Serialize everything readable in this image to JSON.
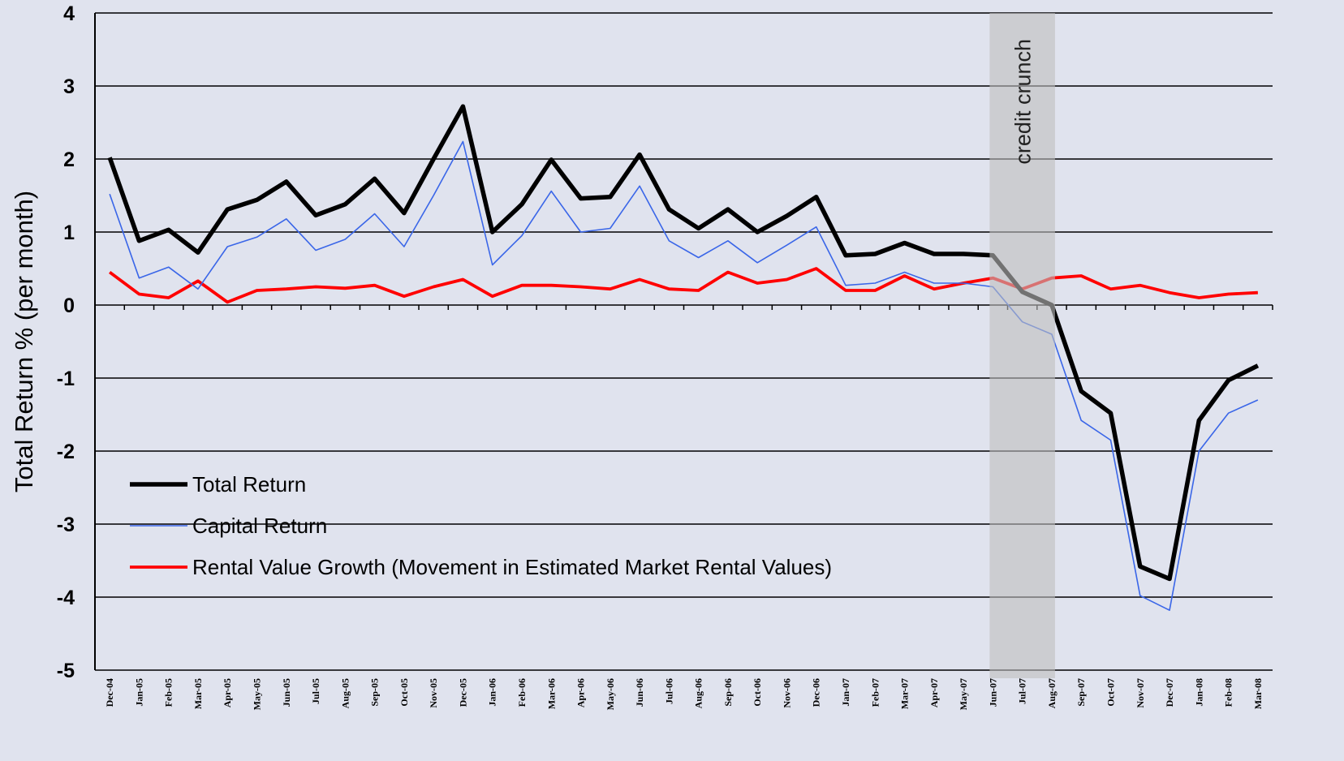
{
  "chart_data": {
    "type": "line",
    "y_label": "Total Return % (per month)",
    "categories": [
      "Dec-04",
      "Jan-05",
      "Feb-05",
      "Mar-05",
      "Apr-05",
      "May-05",
      "Jun-05",
      "Jul-05",
      "Aug-05",
      "Sep-05",
      "Oct-05",
      "Nov-05",
      "Dec-05",
      "Jan-06",
      "Feb-06",
      "Mar-06",
      "Apr-06",
      "May-06",
      "Jun-06",
      "Jul-06",
      "Aug-06",
      "Sep-06",
      "Oct-06",
      "Nov-06",
      "Dec-06",
      "Jan-07",
      "Feb-07",
      "Mar-07",
      "Apr-07",
      "May-07",
      "Jun-07",
      "Jul-07",
      "Aug-07",
      "Sep-07",
      "Oct-07",
      "Nov-07",
      "Dec-07",
      "Jan-08",
      "Feb-08",
      "Mar-08"
    ],
    "series": [
      {
        "name": "Total Return",
        "color": "#000000",
        "values": [
          2.02,
          0.88,
          1.03,
          0.72,
          1.31,
          1.44,
          1.69,
          1.23,
          1.38,
          1.73,
          1.26,
          2.0,
          2.72,
          1.0,
          1.38,
          1.99,
          1.46,
          1.48,
          2.06,
          1.31,
          1.05,
          1.31,
          1.0,
          1.22,
          1.48,
          0.68,
          0.7,
          0.85,
          0.7,
          0.7,
          0.68,
          0.18,
          0.0,
          -1.18,
          -1.48,
          -3.58,
          -3.75,
          -1.58,
          -1.03,
          -0.83
        ]
      },
      {
        "name": "Capital Return",
        "color": "#3a66e8",
        "values": [
          1.52,
          0.37,
          0.52,
          0.22,
          0.8,
          0.93,
          1.18,
          0.75,
          0.9,
          1.25,
          0.8,
          1.5,
          2.24,
          0.55,
          0.95,
          1.56,
          1.0,
          1.05,
          1.63,
          0.88,
          0.65,
          0.88,
          0.58,
          0.82,
          1.07,
          0.27,
          0.3,
          0.45,
          0.3,
          0.3,
          0.25,
          -0.23,
          -0.4,
          -1.58,
          -1.85,
          -3.98,
          -4.18,
          -2.0,
          -1.48,
          -1.3
        ]
      },
      {
        "name": "Rental Value Growth (Movement in Estimated Market Rental Values)",
        "color": "#ff0000",
        "values": [
          0.45,
          0.15,
          0.1,
          0.33,
          0.04,
          0.2,
          0.22,
          0.25,
          0.23,
          0.27,
          0.12,
          0.25,
          0.35,
          0.12,
          0.27,
          0.27,
          0.25,
          0.22,
          0.35,
          0.22,
          0.2,
          0.45,
          0.3,
          0.35,
          0.5,
          0.2,
          0.2,
          0.4,
          0.22,
          0.3,
          0.37,
          0.22,
          0.37,
          0.4,
          0.22,
          0.27,
          0.17,
          0.1,
          0.15,
          0.17
        ]
      }
    ],
    "ylim": [
      -5,
      4
    ],
    "yticks": [
      -5,
      -4,
      -3,
      -2,
      -1,
      0,
      1,
      2,
      3,
      4
    ],
    "grid": true,
    "legend": "lower left",
    "annotation": {
      "text": "credit crunch",
      "x_start": "Jun-07",
      "x_end": "Aug-07"
    }
  }
}
